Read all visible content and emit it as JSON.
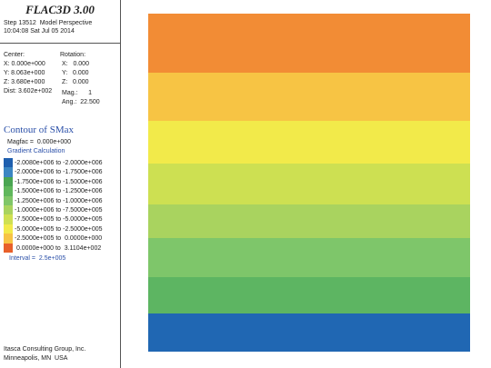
{
  "header": {
    "title": "FLAC3D 3.00",
    "step": "Step 13512  Model Perspective",
    "time": "10:04:08 Sat Jul 05 2014"
  },
  "view": {
    "center_label": "Center:",
    "center": [
      "X: 0.000e+000",
      "Y: 8.063e+000",
      "Z: 3.680e+000"
    ],
    "dist": "Dist: 3.602e+002",
    "rotation_label": "Rotation:",
    "rotation": [
      "X:   0.000",
      "Y:   0.000",
      "Z:   0.000"
    ],
    "mag": "Mag.:      1",
    "ang": "Ang.:  22.500"
  },
  "contour": {
    "title": "Contour of SMax",
    "magfac": "Magfac =  0.000e+000",
    "calc": "Gradient Calculation",
    "entries": [
      {
        "label": "-2.0080e+006 to -2.0000e+006",
        "color": "#1f5fae"
      },
      {
        "label": "-2.0000e+006 to -1.7500e+006",
        "color": "#3b86c2"
      },
      {
        "label": "-1.7500e+006 to -1.5000e+006",
        "color": "#4aa552"
      },
      {
        "label": "-1.5000e+006 to -1.2500e+006",
        "color": "#60b75c"
      },
      {
        "label": "-1.2500e+006 to -1.0000e+006",
        "color": "#80c668"
      },
      {
        "label": "-1.0000e+006 to -7.5000e+005",
        "color": "#a9d35e"
      },
      {
        "label": "-7.5000e+005 to -5.0000e+005",
        "color": "#cfe052"
      },
      {
        "label": "-5.0000e+005 to -2.5000e+005",
        "color": "#f2ea4a"
      },
      {
        "label": "-2.5000e+005 to  0.0000e+000",
        "color": "#f7c444"
      },
      {
        "label": " 0.0000e+000 to  3.1104e+002",
        "color": "#e8602a"
      }
    ],
    "interval": "Interval =  2.5e+005"
  },
  "footer": [
    "Itasca Consulting Group, Inc.",
    "Minneapolis, MN  USA"
  ]
}
